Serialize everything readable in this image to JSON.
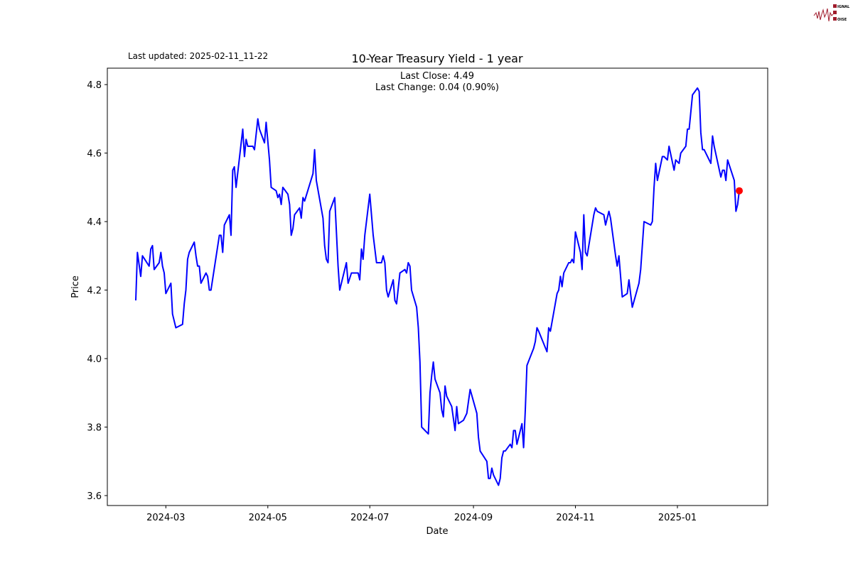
{
  "logo": {
    "text": "SIGNAL 2 NOISE",
    "color": "#a01c2c"
  },
  "last_updated": "Last updated: 2025-02-11_11-22",
  "chart_data": {
    "type": "line",
    "title": "10-Year Treasury Yield - 1 year",
    "xlabel": "Date",
    "ylabel": "Price",
    "annotations": [
      "Last Close: 4.49",
      "Last Change: 0.04 (0.90%)"
    ],
    "line_color": "#0000ff",
    "last_point_color": "#ff0000",
    "grid": false,
    "xlim": [
      "2024-01-26",
      "2025-02-24"
    ],
    "ylim": [
      3.571,
      4.848
    ],
    "x_ticks": [
      {
        "date": "2024-03-01",
        "label": "2024-03"
      },
      {
        "date": "2024-05-01",
        "label": "2024-05"
      },
      {
        "date": "2024-07-01",
        "label": "2024-07"
      },
      {
        "date": "2024-09-01",
        "label": "2024-09"
      },
      {
        "date": "2024-11-01",
        "label": "2024-11"
      },
      {
        "date": "2025-01-01",
        "label": "2025-01"
      }
    ],
    "y_ticks": [
      {
        "value": 3.6,
        "label": "3.6"
      },
      {
        "value": 3.8,
        "label": "3.8"
      },
      {
        "value": 4.0,
        "label": "4.0"
      },
      {
        "value": 4.2,
        "label": "4.2"
      },
      {
        "value": 4.4,
        "label": "4.4"
      },
      {
        "value": 4.6,
        "label": "4.6"
      },
      {
        "value": 4.8,
        "label": "4.8"
      }
    ],
    "points": [
      [
        "2024-02-12",
        4.17
      ],
      [
        "2024-02-13",
        4.31
      ],
      [
        "2024-02-15",
        4.24
      ],
      [
        "2024-02-16",
        4.3
      ],
      [
        "2024-02-20",
        4.27
      ],
      [
        "2024-02-21",
        4.32
      ],
      [
        "2024-02-22",
        4.33
      ],
      [
        "2024-02-23",
        4.26
      ],
      [
        "2024-02-26",
        4.28
      ],
      [
        "2024-02-27",
        4.31
      ],
      [
        "2024-02-28",
        4.27
      ],
      [
        "2024-02-29",
        4.25
      ],
      [
        "2024-03-01",
        4.19
      ],
      [
        "2024-03-04",
        4.22
      ],
      [
        "2024-03-05",
        4.13
      ],
      [
        "2024-03-07",
        4.09
      ],
      [
        "2024-03-11",
        4.1
      ],
      [
        "2024-03-12",
        4.16
      ],
      [
        "2024-03-13",
        4.2
      ],
      [
        "2024-03-14",
        4.29
      ],
      [
        "2024-03-15",
        4.31
      ],
      [
        "2024-03-18",
        4.34
      ],
      [
        "2024-03-19",
        4.3
      ],
      [
        "2024-03-20",
        4.27
      ],
      [
        "2024-03-21",
        4.27
      ],
      [
        "2024-03-22",
        4.22
      ],
      [
        "2024-03-25",
        4.25
      ],
      [
        "2024-03-26",
        4.24
      ],
      [
        "2024-03-27",
        4.2
      ],
      [
        "2024-03-28",
        4.2
      ],
      [
        "2024-04-02",
        4.36
      ],
      [
        "2024-04-03",
        4.36
      ],
      [
        "2024-04-04",
        4.31
      ],
      [
        "2024-04-05",
        4.39
      ],
      [
        "2024-04-08",
        4.42
      ],
      [
        "2024-04-09",
        4.36
      ],
      [
        "2024-04-10",
        4.55
      ],
      [
        "2024-04-11",
        4.56
      ],
      [
        "2024-04-12",
        4.5
      ],
      [
        "2024-04-16",
        4.67
      ],
      [
        "2024-04-17",
        4.59
      ],
      [
        "2024-04-18",
        4.64
      ],
      [
        "2024-04-19",
        4.62
      ],
      [
        "2024-04-22",
        4.62
      ],
      [
        "2024-04-23",
        4.61
      ],
      [
        "2024-04-25",
        4.7
      ],
      [
        "2024-04-26",
        4.67
      ],
      [
        "2024-04-29",
        4.63
      ],
      [
        "2024-04-30",
        4.69
      ],
      [
        "2024-05-02",
        4.58
      ],
      [
        "2024-05-03",
        4.5
      ],
      [
        "2024-05-06",
        4.49
      ],
      [
        "2024-05-07",
        4.47
      ],
      [
        "2024-05-08",
        4.48
      ],
      [
        "2024-05-09",
        4.45
      ],
      [
        "2024-05-10",
        4.5
      ],
      [
        "2024-05-13",
        4.48
      ],
      [
        "2024-05-14",
        4.45
      ],
      [
        "2024-05-15",
        4.36
      ],
      [
        "2024-05-16",
        4.38
      ],
      [
        "2024-05-17",
        4.42
      ],
      [
        "2024-05-20",
        4.44
      ],
      [
        "2024-05-21",
        4.41
      ],
      [
        "2024-05-22",
        4.47
      ],
      [
        "2024-05-23",
        4.46
      ],
      [
        "2024-05-28",
        4.54
      ],
      [
        "2024-05-29",
        4.61
      ],
      [
        "2024-05-30",
        4.52
      ],
      [
        "2024-06-03",
        4.41
      ],
      [
        "2024-06-04",
        4.33
      ],
      [
        "2024-06-05",
        4.29
      ],
      [
        "2024-06-06",
        4.28
      ],
      [
        "2024-06-07",
        4.43
      ],
      [
        "2024-06-10",
        4.47
      ],
      [
        "2024-06-12",
        4.27
      ],
      [
        "2024-06-13",
        4.2
      ],
      [
        "2024-06-17",
        4.28
      ],
      [
        "2024-06-18",
        4.22
      ],
      [
        "2024-06-20",
        4.25
      ],
      [
        "2024-06-24",
        4.25
      ],
      [
        "2024-06-25",
        4.23
      ],
      [
        "2024-06-26",
        4.32
      ],
      [
        "2024-06-27",
        4.29
      ],
      [
        "2024-06-28",
        4.36
      ],
      [
        "2024-07-01",
        4.48
      ],
      [
        "2024-07-03",
        4.36
      ],
      [
        "2024-07-05",
        4.28
      ],
      [
        "2024-07-08",
        4.28
      ],
      [
        "2024-07-09",
        4.3
      ],
      [
        "2024-07-10",
        4.28
      ],
      [
        "2024-07-11",
        4.2
      ],
      [
        "2024-07-12",
        4.18
      ],
      [
        "2024-07-15",
        4.23
      ],
      [
        "2024-07-16",
        4.17
      ],
      [
        "2024-07-17",
        4.16
      ],
      [
        "2024-07-19",
        4.25
      ],
      [
        "2024-07-22",
        4.26
      ],
      [
        "2024-07-23",
        4.25
      ],
      [
        "2024-07-24",
        4.28
      ],
      [
        "2024-07-25",
        4.27
      ],
      [
        "2024-07-26",
        4.2
      ],
      [
        "2024-07-29",
        4.15
      ],
      [
        "2024-07-30",
        4.09
      ],
      [
        "2024-07-31",
        3.99
      ],
      [
        "2024-08-01",
        3.8
      ],
      [
        "2024-08-05",
        3.78
      ],
      [
        "2024-08-06",
        3.9
      ],
      [
        "2024-08-07",
        3.95
      ],
      [
        "2024-08-08",
        3.99
      ],
      [
        "2024-08-09",
        3.94
      ],
      [
        "2024-08-12",
        3.9
      ],
      [
        "2024-08-13",
        3.85
      ],
      [
        "2024-08-14",
        3.83
      ],
      [
        "2024-08-15",
        3.92
      ],
      [
        "2024-08-16",
        3.89
      ],
      [
        "2024-08-19",
        3.86
      ],
      [
        "2024-08-21",
        3.79
      ],
      [
        "2024-08-22",
        3.86
      ],
      [
        "2024-08-23",
        3.81
      ],
      [
        "2024-08-26",
        3.82
      ],
      [
        "2024-08-28",
        3.84
      ],
      [
        "2024-08-30",
        3.91
      ],
      [
        "2024-09-03",
        3.84
      ],
      [
        "2024-09-04",
        3.77
      ],
      [
        "2024-09-05",
        3.73
      ],
      [
        "2024-09-09",
        3.7
      ],
      [
        "2024-09-10",
        3.65
      ],
      [
        "2024-09-11",
        3.65
      ],
      [
        "2024-09-12",
        3.68
      ],
      [
        "2024-09-13",
        3.66
      ],
      [
        "2024-09-16",
        3.63
      ],
      [
        "2024-09-17",
        3.65
      ],
      [
        "2024-09-18",
        3.71
      ],
      [
        "2024-09-19",
        3.73
      ],
      [
        "2024-09-20",
        3.73
      ],
      [
        "2024-09-23",
        3.75
      ],
      [
        "2024-09-24",
        3.74
      ],
      [
        "2024-09-25",
        3.79
      ],
      [
        "2024-09-26",
        3.79
      ],
      [
        "2024-09-27",
        3.75
      ],
      [
        "2024-09-30",
        3.81
      ],
      [
        "2024-10-01",
        3.74
      ],
      [
        "2024-10-02",
        3.85
      ],
      [
        "2024-10-03",
        3.98
      ],
      [
        "2024-10-07",
        4.03
      ],
      [
        "2024-10-08",
        4.05
      ],
      [
        "2024-10-09",
        4.09
      ],
      [
        "2024-10-10",
        4.08
      ],
      [
        "2024-10-15",
        4.02
      ],
      [
        "2024-10-16",
        4.09
      ],
      [
        "2024-10-17",
        4.08
      ],
      [
        "2024-10-21",
        4.19
      ],
      [
        "2024-10-22",
        4.2
      ],
      [
        "2024-10-23",
        4.24
      ],
      [
        "2024-10-24",
        4.21
      ],
      [
        "2024-10-25",
        4.25
      ],
      [
        "2024-10-28",
        4.28
      ],
      [
        "2024-10-29",
        4.28
      ],
      [
        "2024-10-30",
        4.29
      ],
      [
        "2024-10-31",
        4.28
      ],
      [
        "2024-11-01",
        4.37
      ],
      [
        "2024-11-04",
        4.31
      ],
      [
        "2024-11-05",
        4.26
      ],
      [
        "2024-11-06",
        4.42
      ],
      [
        "2024-11-07",
        4.31
      ],
      [
        "2024-11-08",
        4.3
      ],
      [
        "2024-11-12",
        4.42
      ],
      [
        "2024-11-13",
        4.44
      ],
      [
        "2024-11-14",
        4.43
      ],
      [
        "2024-11-18",
        4.42
      ],
      [
        "2024-11-19",
        4.39
      ],
      [
        "2024-11-21",
        4.43
      ],
      [
        "2024-11-22",
        4.41
      ],
      [
        "2024-11-25",
        4.3
      ],
      [
        "2024-11-26",
        4.27
      ],
      [
        "2024-11-27",
        4.3
      ],
      [
        "2024-11-29",
        4.18
      ],
      [
        "2024-12-02",
        4.19
      ],
      [
        "2024-12-03",
        4.23
      ],
      [
        "2024-12-04",
        4.19
      ],
      [
        "2024-12-05",
        4.15
      ],
      [
        "2024-12-09",
        4.22
      ],
      [
        "2024-12-10",
        4.26
      ],
      [
        "2024-12-12",
        4.4
      ],
      [
        "2024-12-16",
        4.39
      ],
      [
        "2024-12-17",
        4.4
      ],
      [
        "2024-12-18",
        4.5
      ],
      [
        "2024-12-19",
        4.57
      ],
      [
        "2024-12-20",
        4.52
      ],
      [
        "2024-12-23",
        4.59
      ],
      [
        "2024-12-24",
        4.59
      ],
      [
        "2024-12-26",
        4.58
      ],
      [
        "2024-12-27",
        4.62
      ],
      [
        "2024-12-30",
        4.55
      ],
      [
        "2024-12-31",
        4.58
      ],
      [
        "2025-01-02",
        4.57
      ],
      [
        "2025-01-03",
        4.6
      ],
      [
        "2025-01-06",
        4.62
      ],
      [
        "2025-01-07",
        4.67
      ],
      [
        "2025-01-08",
        4.67
      ],
      [
        "2025-01-10",
        4.77
      ],
      [
        "2025-01-13",
        4.79
      ],
      [
        "2025-01-14",
        4.78
      ],
      [
        "2025-01-15",
        4.66
      ],
      [
        "2025-01-16",
        4.61
      ],
      [
        "2025-01-17",
        4.61
      ],
      [
        "2025-01-21",
        4.57
      ],
      [
        "2025-01-22",
        4.65
      ],
      [
        "2025-01-23",
        4.62
      ],
      [
        "2025-01-27",
        4.53
      ],
      [
        "2025-01-28",
        4.55
      ],
      [
        "2025-01-29",
        4.55
      ],
      [
        "2025-01-30",
        4.52
      ],
      [
        "2025-01-31",
        4.58
      ],
      [
        "2025-02-04",
        4.52
      ],
      [
        "2025-02-05",
        4.43
      ],
      [
        "2025-02-06",
        4.45
      ],
      [
        "2025-02-07",
        4.49
      ]
    ],
    "last_point": {
      "date": "2025-02-07",
      "value": 4.49
    }
  }
}
